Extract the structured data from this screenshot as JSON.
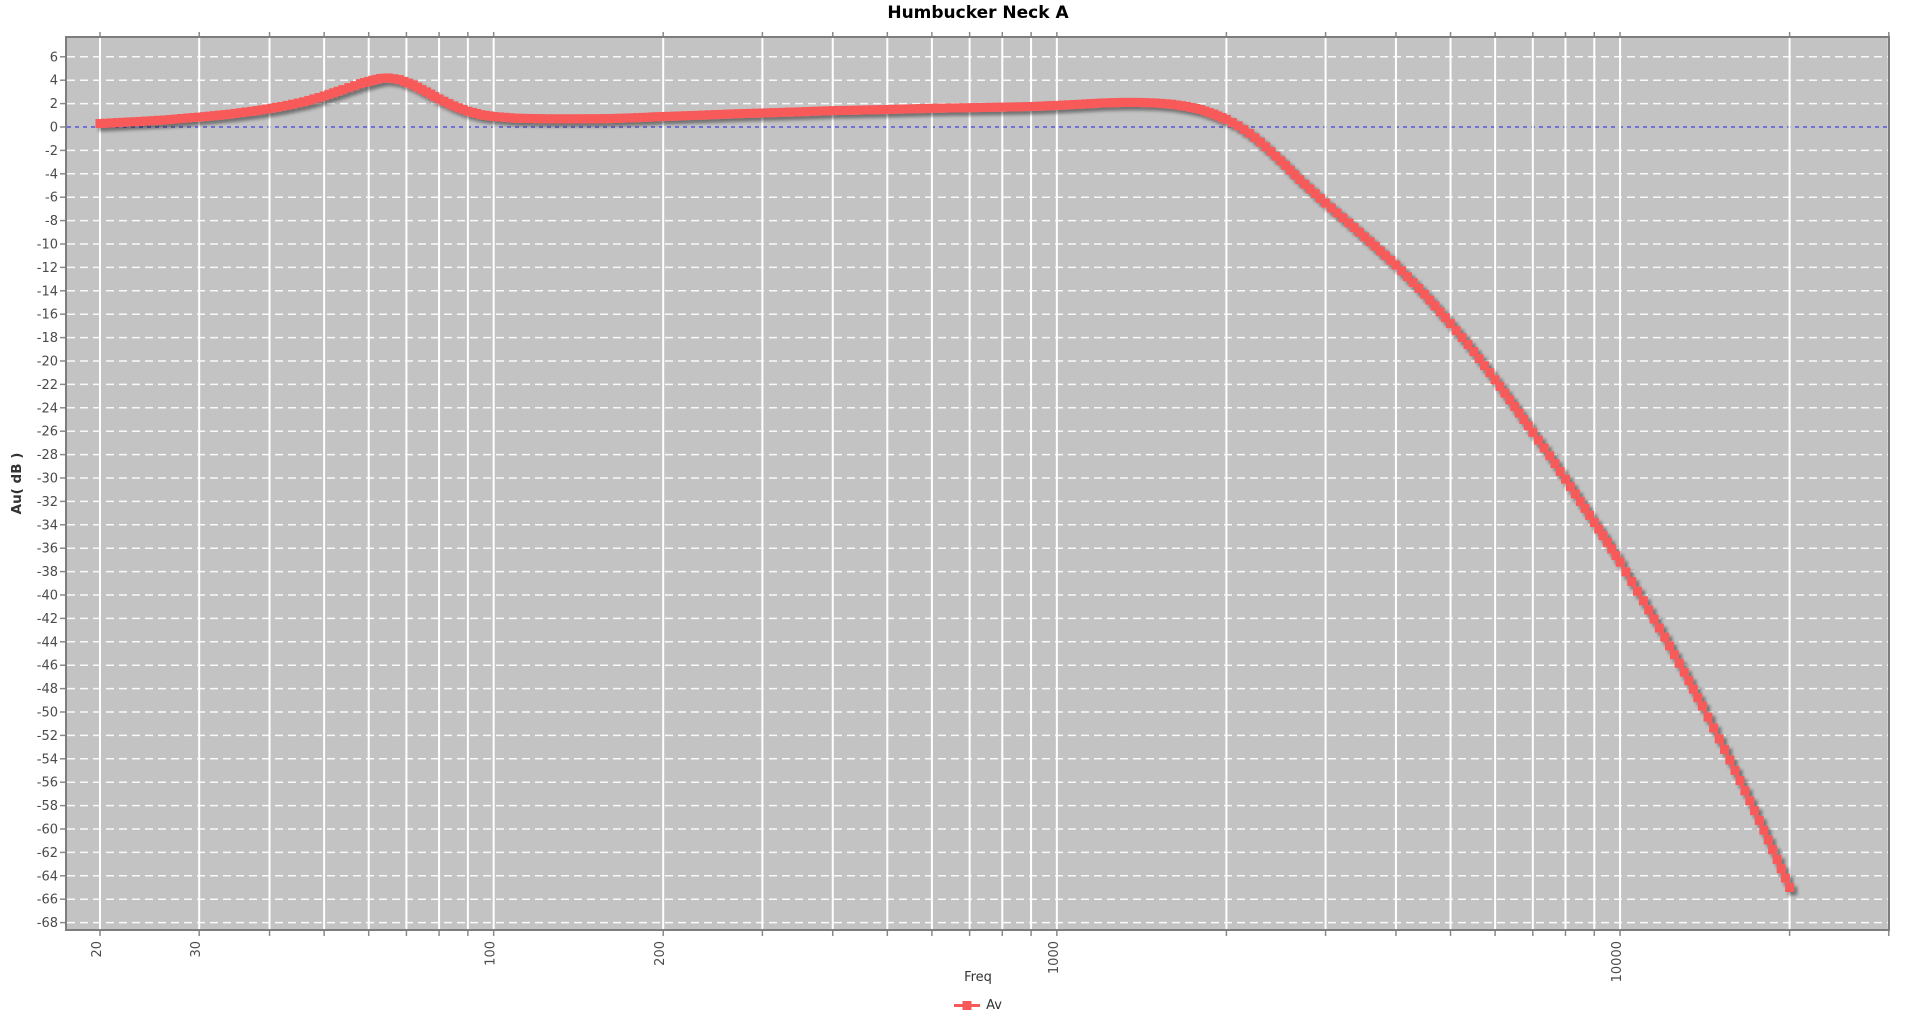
{
  "title": "Humbucker Neck A",
  "axes": {
    "x": {
      "label": "Freq",
      "scale": "log",
      "tick_labels": [
        {
          "f": 20,
          "text": "20"
        },
        {
          "f": 30,
          "text": "30"
        },
        {
          "f": 100,
          "text": "100"
        },
        {
          "f": 200,
          "text": "200"
        },
        {
          "f": 1000,
          "text": "1000"
        },
        {
          "f": 10000,
          "text": "10000"
        }
      ],
      "grid_freqs": [
        20,
        30,
        40,
        50,
        60,
        70,
        80,
        90,
        100,
        200,
        300,
        400,
        500,
        600,
        700,
        800,
        900,
        1000,
        2000,
        3000,
        4000,
        5000,
        6000,
        7000,
        8000,
        9000,
        10000,
        20000,
        30000
      ]
    },
    "y": {
      "label": "Au( dB )",
      "ticks": [
        6,
        4,
        2,
        0,
        -2,
        -4,
        -6,
        -8,
        -10,
        -12,
        -14,
        -16,
        -18,
        -20,
        -22,
        -24,
        -26,
        -28,
        -30,
        -32,
        -34,
        -36,
        -38,
        -40,
        -42,
        -44,
        -46,
        -48,
        -50,
        -52,
        -54,
        -56,
        -58,
        -60,
        -62,
        -64,
        -66,
        -68
      ],
      "zero_reference": 0
    }
  },
  "legend": [
    {
      "label": "Av",
      "color": "#f85a5a",
      "marker": "square-with-line"
    }
  ],
  "colors": {
    "plot_background": "#c3c3c3",
    "grid_line": "#ffffff",
    "zero_line": "#5757d6",
    "series": "#f85a5a",
    "border": "#7d7d7d",
    "tick_mark": "#8a8a8a",
    "tick_text": "#4b4b4b",
    "axis_label_text": "#333333",
    "title_text": "#000000"
  },
  "chart_data": {
    "type": "line",
    "title": "Humbucker Neck A",
    "xlabel": "Freq",
    "ylabel": "Au( dB )",
    "x_scale": "log",
    "xlim": [
      17,
      30000
    ],
    "ylim": [
      -68.5,
      7.7
    ],
    "grid": true,
    "legend_position": "bottom-center",
    "marker": "square",
    "series": [
      {
        "name": "Av",
        "points": [
          [
            20,
            0.3
          ],
          [
            23,
            0.45
          ],
          [
            26,
            0.6
          ],
          [
            30,
            0.85
          ],
          [
            34,
            1.1
          ],
          [
            38,
            1.4
          ],
          [
            42,
            1.75
          ],
          [
            46,
            2.15
          ],
          [
            50,
            2.65
          ],
          [
            54,
            3.2
          ],
          [
            58,
            3.7
          ],
          [
            61,
            4.0
          ],
          [
            63,
            4.15
          ],
          [
            65,
            4.2
          ],
          [
            68,
            4.05
          ],
          [
            72,
            3.6
          ],
          [
            76,
            3.0
          ],
          [
            80,
            2.4
          ],
          [
            85,
            1.8
          ],
          [
            90,
            1.35
          ],
          [
            95,
            1.05
          ],
          [
            100,
            0.9
          ],
          [
            110,
            0.75
          ],
          [
            125,
            0.7
          ],
          [
            140,
            0.7
          ],
          [
            160,
            0.72
          ],
          [
            180,
            0.8
          ],
          [
            200,
            0.9
          ],
          [
            230,
            1.0
          ],
          [
            260,
            1.1
          ],
          [
            300,
            1.2
          ],
          [
            350,
            1.3
          ],
          [
            400,
            1.4
          ],
          [
            450,
            1.45
          ],
          [
            500,
            1.5
          ],
          [
            600,
            1.6
          ],
          [
            700,
            1.65
          ],
          [
            800,
            1.7
          ],
          [
            900,
            1.75
          ],
          [
            1000,
            1.85
          ],
          [
            1100,
            1.95
          ],
          [
            1200,
            2.05
          ],
          [
            1300,
            2.1
          ],
          [
            1400,
            2.1
          ],
          [
            1500,
            2.05
          ],
          [
            1600,
            1.95
          ],
          [
            1700,
            1.75
          ],
          [
            1800,
            1.5
          ],
          [
            1900,
            1.1
          ],
          [
            2000,
            0.65
          ],
          [
            2100,
            0.1
          ],
          [
            2200,
            -0.55
          ],
          [
            2300,
            -1.3
          ],
          [
            2400,
            -2.1
          ],
          [
            2500,
            -2.9
          ],
          [
            2700,
            -4.5
          ],
          [
            3000,
            -6.5
          ],
          [
            3300,
            -8.2
          ],
          [
            3600,
            -9.8
          ],
          [
            4000,
            -11.8
          ],
          [
            4500,
            -14.3
          ],
          [
            5000,
            -16.8
          ],
          [
            5500,
            -19.2
          ],
          [
            6000,
            -21.6
          ],
          [
            6500,
            -23.9
          ],
          [
            7000,
            -26.1
          ],
          [
            7500,
            -28.1
          ],
          [
            8000,
            -30.1
          ],
          [
            8500,
            -32.0
          ],
          [
            9000,
            -33.8
          ],
          [
            9500,
            -35.5
          ],
          [
            10000,
            -37.2
          ],
          [
            11000,
            -40.5
          ],
          [
            12000,
            -43.6
          ],
          [
            13000,
            -46.6
          ],
          [
            14000,
            -49.5
          ],
          [
            15000,
            -52.3
          ],
          [
            16000,
            -55.0
          ],
          [
            17000,
            -57.6
          ],
          [
            18000,
            -60.1
          ],
          [
            19000,
            -62.6
          ],
          [
            20000,
            -65.0
          ]
        ]
      }
    ]
  }
}
